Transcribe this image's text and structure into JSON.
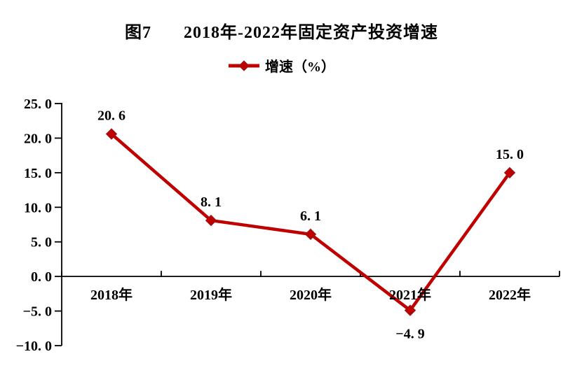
{
  "figure": {
    "title_prefix": "图7",
    "title_main": "2018年-2022年固定资产投资增速"
  },
  "legend": {
    "label": "增速（%）",
    "marker": "diamond",
    "color": "#c00000"
  },
  "chart_data": {
    "type": "line",
    "title": "图7　2018年-2022年固定资产投资增速",
    "categories": [
      "2018年",
      "2019年",
      "2020年",
      "2021年",
      "2022年"
    ],
    "series": [
      {
        "name": "增速（%）",
        "values": [
          20.6,
          8.1,
          6.1,
          -4.9,
          15.0
        ]
      }
    ],
    "data_labels": [
      "20. 6",
      "8. 1",
      "6. 1",
      "−4. 9",
      "15. 0"
    ],
    "xlabel": "",
    "ylabel": "",
    "ylim": [
      -10,
      25
    ],
    "y_tick_step": 5,
    "y_ticks": [
      25,
      20,
      15,
      10,
      5,
      0,
      -5,
      -10
    ],
    "y_tick_labels": [
      "25. 0",
      "20. 0",
      "15. 0",
      "10. 0",
      "5. 0",
      "0. 0",
      "−5. 0",
      "−10. 0"
    ],
    "grid": false,
    "legend_position": "top-center",
    "marker": "diamond",
    "colors": {
      "line": "#c00000",
      "marker_fill": "#c00000",
      "marker_edge": "#8f1a1a",
      "axis": "#000000",
      "text": "#000000",
      "background": "#ffffff"
    }
  }
}
